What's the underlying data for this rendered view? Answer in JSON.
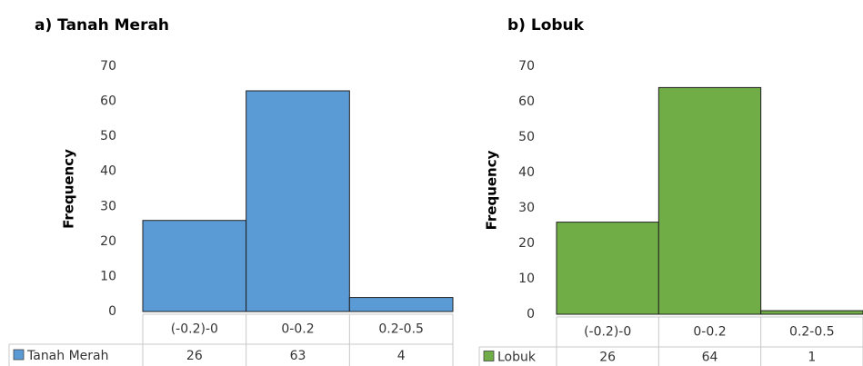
{
  "chart_data": [
    {
      "type": "bar",
      "title": "a) Tanah Merah",
      "y_label": "Frequency",
      "categories": [
        "(-0.2)-0",
        "0-0.2",
        "0.2-0.5"
      ],
      "series": [
        {
          "name": "Tanah Merah",
          "color": "#5b9bd5",
          "values": [
            26,
            63,
            4
          ]
        }
      ],
      "ylim": [
        0,
        70
      ],
      "yticks": [
        0,
        10,
        20,
        30,
        40,
        50,
        60,
        70
      ],
      "grid": false
    },
    {
      "type": "bar",
      "title": "b) Lobuk",
      "y_label": "Frequency",
      "categories": [
        "(-0.2)-0",
        "0-0.2",
        "0.2-0.5"
      ],
      "series": [
        {
          "name": "Lobuk",
          "color": "#70ad47",
          "values": [
            26,
            64,
            1
          ]
        }
      ],
      "ylim": [
        0,
        70
      ],
      "yticks": [
        0,
        10,
        20,
        30,
        40,
        50,
        60,
        70
      ],
      "grid": false
    }
  ]
}
